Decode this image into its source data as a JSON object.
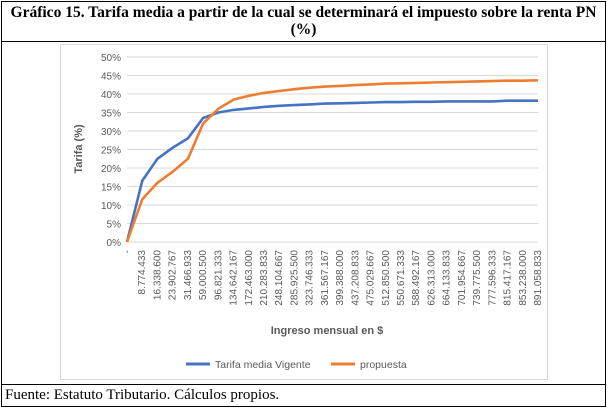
{
  "title": "Gráfico 15. Tarifa media a partir de la cual se determinará el impuesto sobre la renta PN (%)",
  "source": "Fuente: Estatuto Tributario. Cálculos propios.",
  "chart_data": {
    "type": "line",
    "xlabel": "Ingreso mensual en $",
    "ylabel": "Tarifa (%)",
    "ylim": [
      0,
      50
    ],
    "yticks": [
      "0%",
      "5%",
      "10%",
      "15%",
      "20%",
      "25%",
      "30%",
      "35%",
      "40%",
      "45%",
      "50%"
    ],
    "grid": true,
    "legend": "bottom",
    "categories": [
      "-",
      "8.774.433",
      "16.338.600",
      "23.902.767",
      "31.466.933",
      "59.000.500",
      "96.821.333",
      "134.642.167",
      "172.463.000",
      "210.283.833",
      "248.104.667",
      "285.925.500",
      "323.746.333",
      "361.567.167",
      "399.388.000",
      "437.208.833",
      "475.029.667",
      "512.850.500",
      "550.671.333",
      "588.492.167",
      "626.313.000",
      "664.133.833",
      "701.954.667",
      "739.775.500",
      "777.596.333",
      "815.417.167",
      "853.238.000",
      "891.058.833"
    ],
    "series": [
      {
        "name": "Tarifa media Vigente",
        "color": "#4472c4",
        "values": [
          0,
          16.5,
          22.5,
          25.5,
          28,
          33.5,
          35,
          35.7,
          36.1,
          36.5,
          36.8,
          37,
          37.2,
          37.4,
          37.5,
          37.6,
          37.7,
          37.8,
          37.8,
          37.9,
          37.9,
          38,
          38,
          38,
          38,
          38.2,
          38.2,
          38.2
        ]
      },
      {
        "name": "propuesta",
        "color": "#ed7d31",
        "values": [
          0,
          11.5,
          16,
          19,
          22.5,
          32,
          36,
          38.5,
          39.5,
          40.3,
          40.8,
          41.3,
          41.7,
          42,
          42.2,
          42.4,
          42.6,
          42.8,
          42.9,
          43,
          43.1,
          43.2,
          43.3,
          43.4,
          43.5,
          43.6,
          43.6,
          43.7
        ]
      }
    ]
  }
}
